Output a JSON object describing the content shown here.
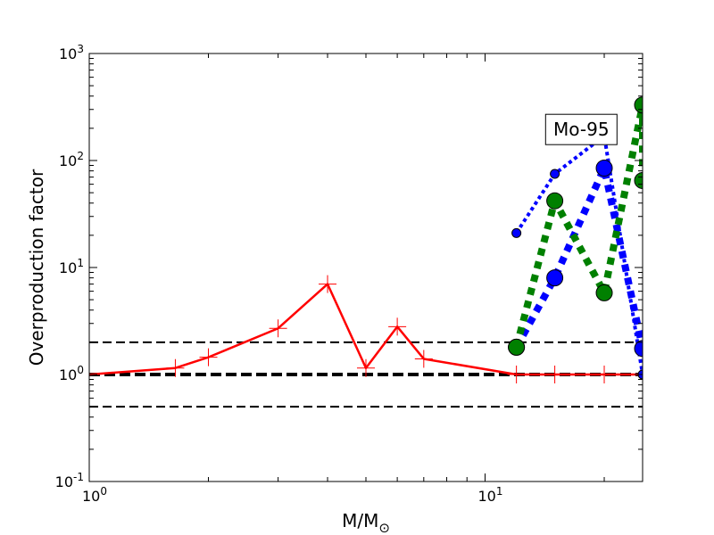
{
  "chart_data": {
    "type": "line",
    "xlabel": "M/M",
    "xlabel_subscript": "⊙",
    "ylabel": "Overproduction factor",
    "xscale": "log",
    "yscale": "log",
    "xlim": [
      1,
      25
    ],
    "ylim": [
      0.1,
      1000
    ],
    "x_ticks": [
      {
        "value": 1,
        "base": "10",
        "exp": "0"
      },
      {
        "value": 10,
        "base": "10",
        "exp": "1"
      }
    ],
    "y_ticks": [
      {
        "value": 0.1,
        "base": "10",
        "exp": "-1"
      },
      {
        "value": 1,
        "base": "10",
        "exp": "0"
      },
      {
        "value": 10,
        "base": "10",
        "exp": "1"
      },
      {
        "value": 100,
        "base": "10",
        "exp": "2"
      },
      {
        "value": 1000,
        "base": "10",
        "exp": "3"
      }
    ],
    "grid": false,
    "annotation": {
      "text": "Mo-95",
      "x": 17.5,
      "y": 195
    },
    "reference_lines": [
      {
        "y": 2.0,
        "color": "#000000",
        "style": "dashed",
        "width": 2
      },
      {
        "y": 1.0,
        "color": "#000000",
        "style": "dashed",
        "width": 4
      },
      {
        "y": 0.5,
        "color": "#000000",
        "style": "dashed",
        "width": 2
      }
    ],
    "series": [
      {
        "color": "#ff0000",
        "line": "solid",
        "width": 2.5,
        "marker": "plus",
        "marker_size": 10,
        "x": [
          1.0,
          1.65,
          2.0,
          3.0,
          4.0,
          5.0,
          6.0,
          7.0,
          12.0,
          15.0,
          20.0,
          25.0
        ],
        "y": [
          1.0,
          1.15,
          1.45,
          2.7,
          7.0,
          1.15,
          2.8,
          1.4,
          1.0,
          1.0,
          1.0,
          1.0
        ]
      },
      {
        "color": "#0000ff",
        "line": "dotted",
        "width": 4,
        "marker": "circle",
        "marker_size": 5,
        "x": [
          12.0,
          15.0,
          20.0,
          25.0
        ],
        "y": [
          21,
          75,
          170,
          1.0
        ]
      },
      {
        "color": "#0000ff",
        "line": "dotted",
        "width": 8,
        "marker": "circle",
        "marker_size": 9,
        "x": [
          12.0,
          15.0,
          20.0,
          25.0
        ],
        "y": [
          1.8,
          8.0,
          85,
          1.75
        ]
      },
      {
        "color": "#008000",
        "line": "dotted",
        "width": 8,
        "marker": "circle",
        "marker_size": 9,
        "x": [
          12.0,
          15.0,
          20.0,
          25.0,
          25.0
        ],
        "y": [
          1.8,
          42,
          5.8,
          330,
          65
        ]
      }
    ]
  }
}
